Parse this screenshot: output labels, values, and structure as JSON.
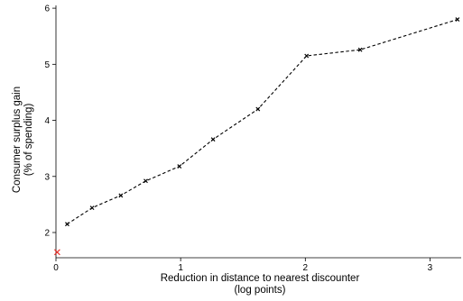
{
  "chart_data": {
    "type": "line",
    "xlabel": [
      "Reduction in distance to nearest discounter",
      "(log points)"
    ],
    "ylabel": [
      "Consumer surplus gain",
      "(% of spending)"
    ],
    "xlim": [
      0,
      3.25
    ],
    "ylim": [
      1.55,
      6.05
    ],
    "x_ticks": [
      0,
      1,
      2,
      3
    ],
    "y_ticks": [
      2,
      3,
      4,
      5,
      6
    ],
    "grid": false,
    "series": [
      {
        "style": "dashed",
        "color": "#000000",
        "marker": "x",
        "points": [
          {
            "x": 0.09,
            "y": 2.15
          },
          {
            "x": 0.29,
            "y": 2.44
          },
          {
            "x": 0.52,
            "y": 2.66
          },
          {
            "x": 0.72,
            "y": 2.92
          },
          {
            "x": 0.99,
            "y": 3.18
          },
          {
            "x": 1.26,
            "y": 3.66
          },
          {
            "x": 1.62,
            "y": 4.2
          },
          {
            "x": 2.01,
            "y": 5.15
          },
          {
            "x": 2.44,
            "y": 5.26
          },
          {
            "x": 3.22,
            "y": 5.8
          }
        ]
      }
    ],
    "highlight_points": [
      {
        "x": 0.01,
        "y": 1.65,
        "color": "#e8322b",
        "marker": "x"
      }
    ]
  }
}
